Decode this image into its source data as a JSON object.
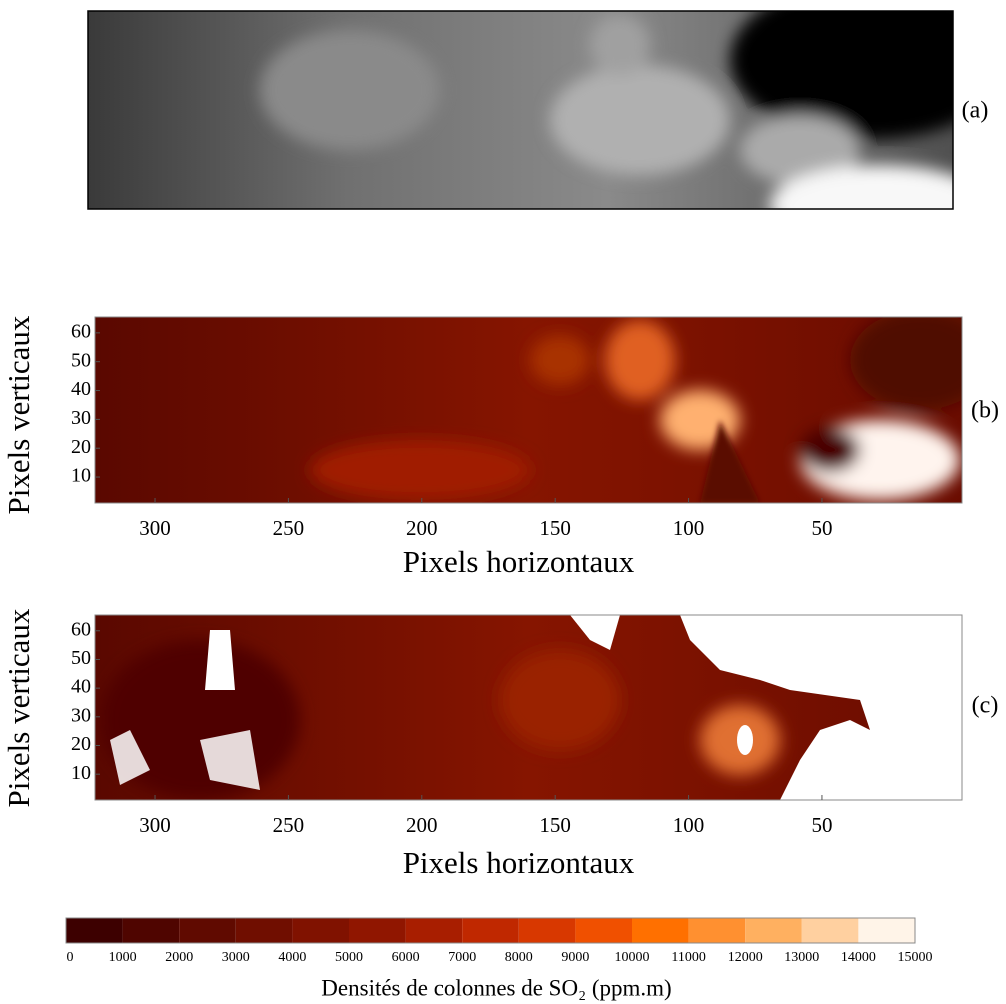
{
  "chart_data": [
    {
      "type": "image",
      "label": "(a)"
    },
    {
      "type": "heatmap",
      "label": "(b)",
      "xlabel": "Pixels horizontaux",
      "ylabel": "Pixels verticaux",
      "xlim": [
        322.5,
        -2.5
      ],
      "xticks": [
        300,
        250,
        200,
        150,
        100,
        50
      ],
      "ylim": [
        1,
        65.5
      ],
      "yticks": [
        10,
        20,
        30,
        40,
        50,
        60
      ]
    },
    {
      "type": "heatmap",
      "label": "(c)",
      "xlabel": "Pixels horizontaux",
      "ylabel": "Pixels verticaux",
      "xlim": [
        322.5,
        -2.5
      ],
      "xticks": [
        300,
        250,
        200,
        150,
        100,
        50
      ],
      "ylim": [
        1,
        65.5
      ],
      "yticks": [
        10,
        20,
        30,
        40,
        50,
        60
      ]
    },
    {
      "type": "colorbar",
      "title": "Densités de colonnes de SO₂ (ppm.m)",
      "ticks": [
        0,
        1000,
        2000,
        3000,
        4000,
        5000,
        6000,
        7000,
        8000,
        9000,
        10000,
        11000,
        12000,
        13000,
        14000,
        15000
      ],
      "colors": [
        "#3d0000",
        "#4f0500",
        "#600a00",
        "#700e00",
        "#801200",
        "#901600",
        "#a81e00",
        "#c02800",
        "#d83800",
        "#f05000",
        "#ff7000",
        "#ff9030",
        "#ffb060",
        "#ffd0a0",
        "#fff4e8"
      ]
    }
  ]
}
